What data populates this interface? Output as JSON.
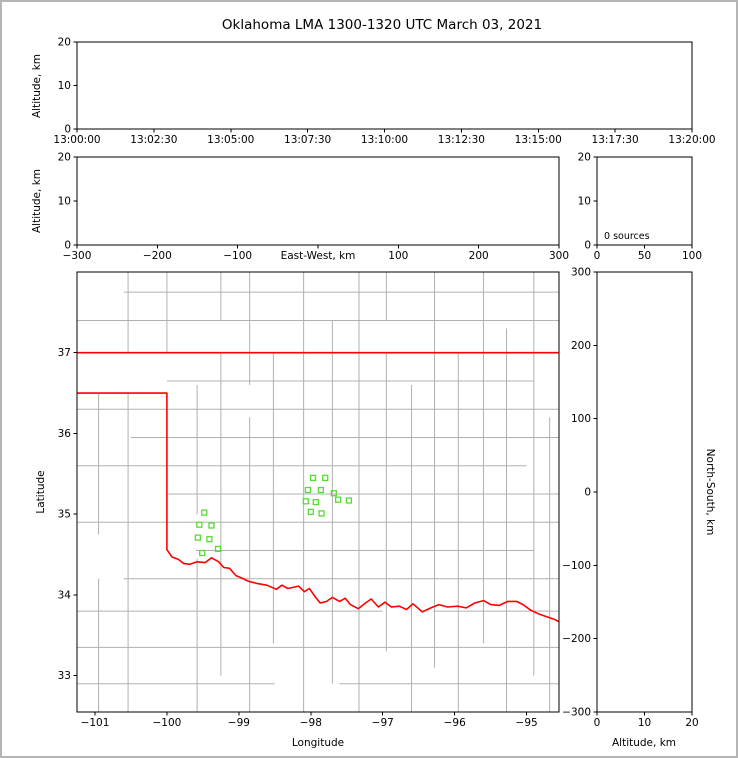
{
  "title": "Oklahoma LMA 1300-1320 UTC March 03, 2021",
  "colors": {
    "state_border": "#ff0000",
    "county_lines": "#b0b0b0",
    "station_marker": "#55dd33",
    "axis": "#000000",
    "background": "#ffffff"
  },
  "chart_data": [
    {
      "id": "time-height-panel",
      "type": "scatter",
      "xlabel": "",
      "ylabel": "Altitude, km",
      "xtick_labels": [
        "13:00:00",
        "13:02:30",
        "13:05:00",
        "13:07:30",
        "13:10:00",
        "13:12:30",
        "13:15:00",
        "13:17:30",
        "13:20:00"
      ],
      "ylim": [
        0,
        20
      ],
      "yticks": [
        0,
        10,
        20
      ],
      "points": []
    },
    {
      "id": "east-west-height-panel",
      "type": "scatter",
      "xlabel": "East-West, km",
      "ylabel": "Altitude, km",
      "xlim": [
        -300,
        300
      ],
      "xticks": [
        -300,
        -200,
        -100,
        0,
        100,
        200,
        300
      ],
      "xlabel_inline": true,
      "ylim": [
        0,
        20
      ],
      "yticks": [
        0,
        10,
        20
      ],
      "points": []
    },
    {
      "id": "altitude-histogram-panel",
      "type": "line",
      "xlabel": "",
      "ylabel": "",
      "xlim": [
        0,
        100
      ],
      "xticks": [
        0,
        50,
        100
      ],
      "ylim": [
        0,
        20
      ],
      "yticks": [
        0,
        10,
        20
      ],
      "annotation": "0 sources",
      "points": []
    },
    {
      "id": "plan-view-map-panel",
      "type": "scatter",
      "xlabel": "Longitude",
      "ylabel": "Latitude",
      "xlim": [
        -101.25,
        -94.55
      ],
      "xticks": [
        -101,
        -100,
        -99,
        -98,
        -97,
        -96,
        -95
      ],
      "ylim": [
        32.55,
        38.0
      ],
      "yticks": [
        33,
        34,
        35,
        36,
        37
      ],
      "stations": [
        [
          -97.97,
          35.45
        ],
        [
          -97.8,
          35.45
        ],
        [
          -98.04,
          35.3
        ],
        [
          -97.86,
          35.3
        ],
        [
          -97.68,
          35.26
        ],
        [
          -98.07,
          35.16
        ],
        [
          -97.93,
          35.15
        ],
        [
          -97.62,
          35.18
        ],
        [
          -97.47,
          35.17
        ],
        [
          -98.0,
          35.03
        ],
        [
          -97.85,
          35.01
        ],
        [
          -99.48,
          35.02
        ],
        [
          -99.55,
          34.87
        ],
        [
          -99.38,
          34.86
        ],
        [
          -99.57,
          34.71
        ],
        [
          -99.41,
          34.69
        ],
        [
          -99.29,
          34.57
        ],
        [
          -99.51,
          34.52
        ]
      ],
      "state_border": [
        [
          [
            -101.25,
            37.0
          ],
          [
            -94.55,
            37.0
          ]
        ],
        [
          [
            -101.25,
            36.5
          ],
          [
            -100.0,
            36.5
          ],
          [
            -100.0,
            34.56
          ],
          [
            -99.93,
            34.47
          ],
          [
            -99.84,
            34.44
          ],
          [
            -99.77,
            34.39
          ],
          [
            -99.68,
            34.38
          ],
          [
            -99.58,
            34.41
          ],
          [
            -99.47,
            34.4
          ],
          [
            -99.38,
            34.46
          ],
          [
            -99.28,
            34.41
          ],
          [
            -99.21,
            34.34
          ],
          [
            -99.13,
            34.33
          ],
          [
            -99.04,
            34.24
          ],
          [
            -98.96,
            34.21
          ],
          [
            -98.87,
            34.17
          ],
          [
            -98.74,
            34.14
          ],
          [
            -98.61,
            34.12
          ],
          [
            -98.48,
            34.07
          ],
          [
            -98.4,
            34.12
          ],
          [
            -98.32,
            34.08
          ],
          [
            -98.17,
            34.11
          ],
          [
            -98.09,
            34.04
          ],
          [
            -98.02,
            34.08
          ],
          [
            -97.95,
            33.99
          ],
          [
            -97.87,
            33.9
          ],
          [
            -97.78,
            33.92
          ],
          [
            -97.7,
            33.97
          ],
          [
            -97.6,
            33.92
          ],
          [
            -97.52,
            33.96
          ],
          [
            -97.45,
            33.88
          ],
          [
            -97.34,
            33.83
          ],
          [
            -97.24,
            33.9
          ],
          [
            -97.16,
            33.95
          ],
          [
            -97.06,
            33.85
          ],
          [
            -96.97,
            33.91
          ],
          [
            -96.88,
            33.85
          ],
          [
            -96.77,
            33.86
          ],
          [
            -96.67,
            33.82
          ],
          [
            -96.58,
            33.89
          ],
          [
            -96.45,
            33.79
          ],
          [
            -96.33,
            33.84
          ],
          [
            -96.22,
            33.88
          ],
          [
            -96.1,
            33.85
          ],
          [
            -95.96,
            33.86
          ],
          [
            -95.84,
            33.84
          ],
          [
            -95.72,
            33.9
          ],
          [
            -95.6,
            33.93
          ],
          [
            -95.5,
            33.88
          ],
          [
            -95.38,
            33.87
          ],
          [
            -95.26,
            33.92
          ],
          [
            -95.14,
            33.92
          ],
          [
            -95.05,
            33.88
          ],
          [
            -94.94,
            33.81
          ],
          [
            -94.82,
            33.76
          ],
          [
            -94.72,
            33.73
          ],
          [
            -94.62,
            33.7
          ],
          [
            -94.55,
            33.67
          ]
        ]
      ],
      "county_lines": [
        [
          "v",
          -100.95,
          32.55,
          34.2
        ],
        [
          "v",
          -100.95,
          34.75,
          36.5
        ],
        [
          "v",
          -100.54,
          32.55,
          36.5
        ],
        [
          "v",
          -100.54,
          37.0,
          38.0
        ],
        [
          "v",
          -100.0,
          37.0,
          38.0
        ],
        [
          "v",
          -99.58,
          32.55,
          34.45
        ],
        [
          "v",
          -99.58,
          35.0,
          36.6
        ],
        [
          "v",
          -99.25,
          33.0,
          37.0
        ],
        [
          "v",
          -99.25,
          37.4,
          38.0
        ],
        [
          "v",
          -98.85,
          32.55,
          36.2
        ],
        [
          "v",
          -98.85,
          36.6,
          38.0
        ],
        [
          "v",
          -98.52,
          33.4,
          37.0
        ],
        [
          "v",
          -98.1,
          32.55,
          38.0
        ],
        [
          "v",
          -97.7,
          32.9,
          37.4
        ],
        [
          "v",
          -97.33,
          32.55,
          38.0
        ],
        [
          "v",
          -96.95,
          33.3,
          37.0
        ],
        [
          "v",
          -96.95,
          37.4,
          38.0
        ],
        [
          "v",
          -96.6,
          32.55,
          36.6
        ],
        [
          "v",
          -96.28,
          33.1,
          38.0
        ],
        [
          "v",
          -95.95,
          32.55,
          37.0
        ],
        [
          "v",
          -95.6,
          33.4,
          38.0
        ],
        [
          "v",
          -95.28,
          32.55,
          37.3
        ],
        [
          "v",
          -94.9,
          33.0,
          38.0
        ],
        [
          "v",
          -94.68,
          32.55,
          36.2
        ],
        [
          "h",
          32.9,
          -101.25,
          -98.5
        ],
        [
          "h",
          32.9,
          -97.6,
          -94.55
        ],
        [
          "h",
          33.35,
          -101.25,
          -94.55
        ],
        [
          "h",
          33.8,
          -101.25,
          -97.0
        ],
        [
          "h",
          33.8,
          -96.3,
          -94.55
        ],
        [
          "h",
          34.2,
          -100.6,
          -94.55
        ],
        [
          "h",
          34.55,
          -99.6,
          -94.9
        ],
        [
          "h",
          34.9,
          -101.25,
          -94.55
        ],
        [
          "h",
          35.25,
          -100.0,
          -94.55
        ],
        [
          "h",
          35.6,
          -101.25,
          -95.0
        ],
        [
          "h",
          35.95,
          -100.5,
          -94.55
        ],
        [
          "h",
          36.3,
          -101.25,
          -94.55
        ],
        [
          "h",
          36.65,
          -100.0,
          -94.9
        ],
        [
          "h",
          37.4,
          -101.25,
          -94.55
        ],
        [
          "h",
          37.75,
          -100.6,
          -94.55
        ]
      ]
    },
    {
      "id": "north-south-height-panel",
      "type": "scatter",
      "xlabel": "Altitude, km",
      "ylabel": "North-South, km",
      "xlim": [
        0,
        20
      ],
      "xticks": [
        0,
        10,
        20
      ],
      "ylim": [
        -300,
        300
      ],
      "yticks": [
        -300,
        -200,
        -100,
        0,
        100,
        200,
        300
      ],
      "points": []
    }
  ]
}
